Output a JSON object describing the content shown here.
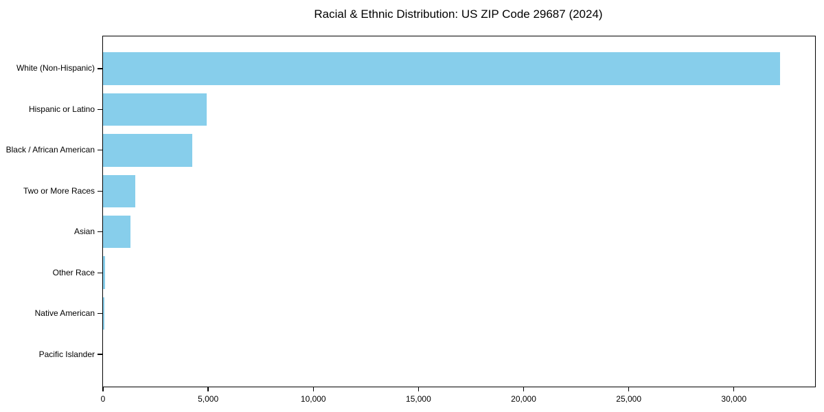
{
  "chart_data": {
    "type": "bar",
    "orientation": "horizontal",
    "title": "Racial & Ethnic Distribution: US ZIP Code 29687 (2024)",
    "categories": [
      "White (Non-Hispanic)",
      "Hispanic or Latino",
      "Black / African American",
      "Two or More Races",
      "Asian",
      "Other Race",
      "Native American",
      "Pacific Islander"
    ],
    "values": [
      32200,
      4930,
      4250,
      1530,
      1310,
      110,
      75,
      0
    ],
    "bar_color": "#87CEEB",
    "xlabel": "",
    "ylabel": "",
    "xlim": [
      0,
      33860
    ],
    "x_ticks": [
      {
        "value": 0,
        "label": "0"
      },
      {
        "value": 5000,
        "label": "5,000"
      },
      {
        "value": 10000,
        "label": "10,000"
      },
      {
        "value": 15000,
        "label": "15,000"
      },
      {
        "value": 20000,
        "label": "20,000"
      },
      {
        "value": 25000,
        "label": "25,000"
      },
      {
        "value": 30000,
        "label": "30,000"
      }
    ],
    "grid": false,
    "legend": null
  }
}
